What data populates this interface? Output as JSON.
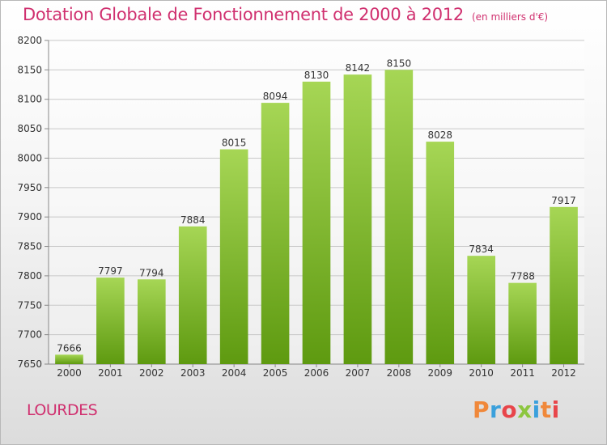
{
  "header": {
    "title": "Dotation Globale de Fonctionnement de 2000 à 2012",
    "subtitle": "(en milliers d'€)"
  },
  "footer": {
    "town": "LOURDES",
    "logo_text": "Proxiti"
  },
  "colors": {
    "title": "#d0306f",
    "bar_top": "#a6d655",
    "bar_bottom": "#5e9a10",
    "grid": "#c8c8c8",
    "logo": [
      "#f0883a",
      "#3aa0dc",
      "#e8454a",
      "#8cc63f",
      "#3aa0dc",
      "#f0883a",
      "#e8454a"
    ]
  },
  "chart_data": {
    "type": "bar",
    "title": "Dotation Globale de Fonctionnement de 2000 à 2012",
    "subtitle": "(en milliers d'€)",
    "categories": [
      "2000",
      "2001",
      "2002",
      "2003",
      "2004",
      "2005",
      "2006",
      "2007",
      "2008",
      "2009",
      "2010",
      "2011",
      "2012"
    ],
    "values": [
      7666,
      7797,
      7794,
      7884,
      8015,
      8094,
      8130,
      8142,
      8150,
      8028,
      7834,
      7788,
      7917
    ],
    "ylim": [
      7650,
      8200
    ],
    "yticks": [
      7650,
      7700,
      7750,
      7800,
      7850,
      7900,
      7950,
      8000,
      8050,
      8100,
      8150,
      8200
    ],
    "grid": true,
    "xlabel": "",
    "ylabel": ""
  }
}
